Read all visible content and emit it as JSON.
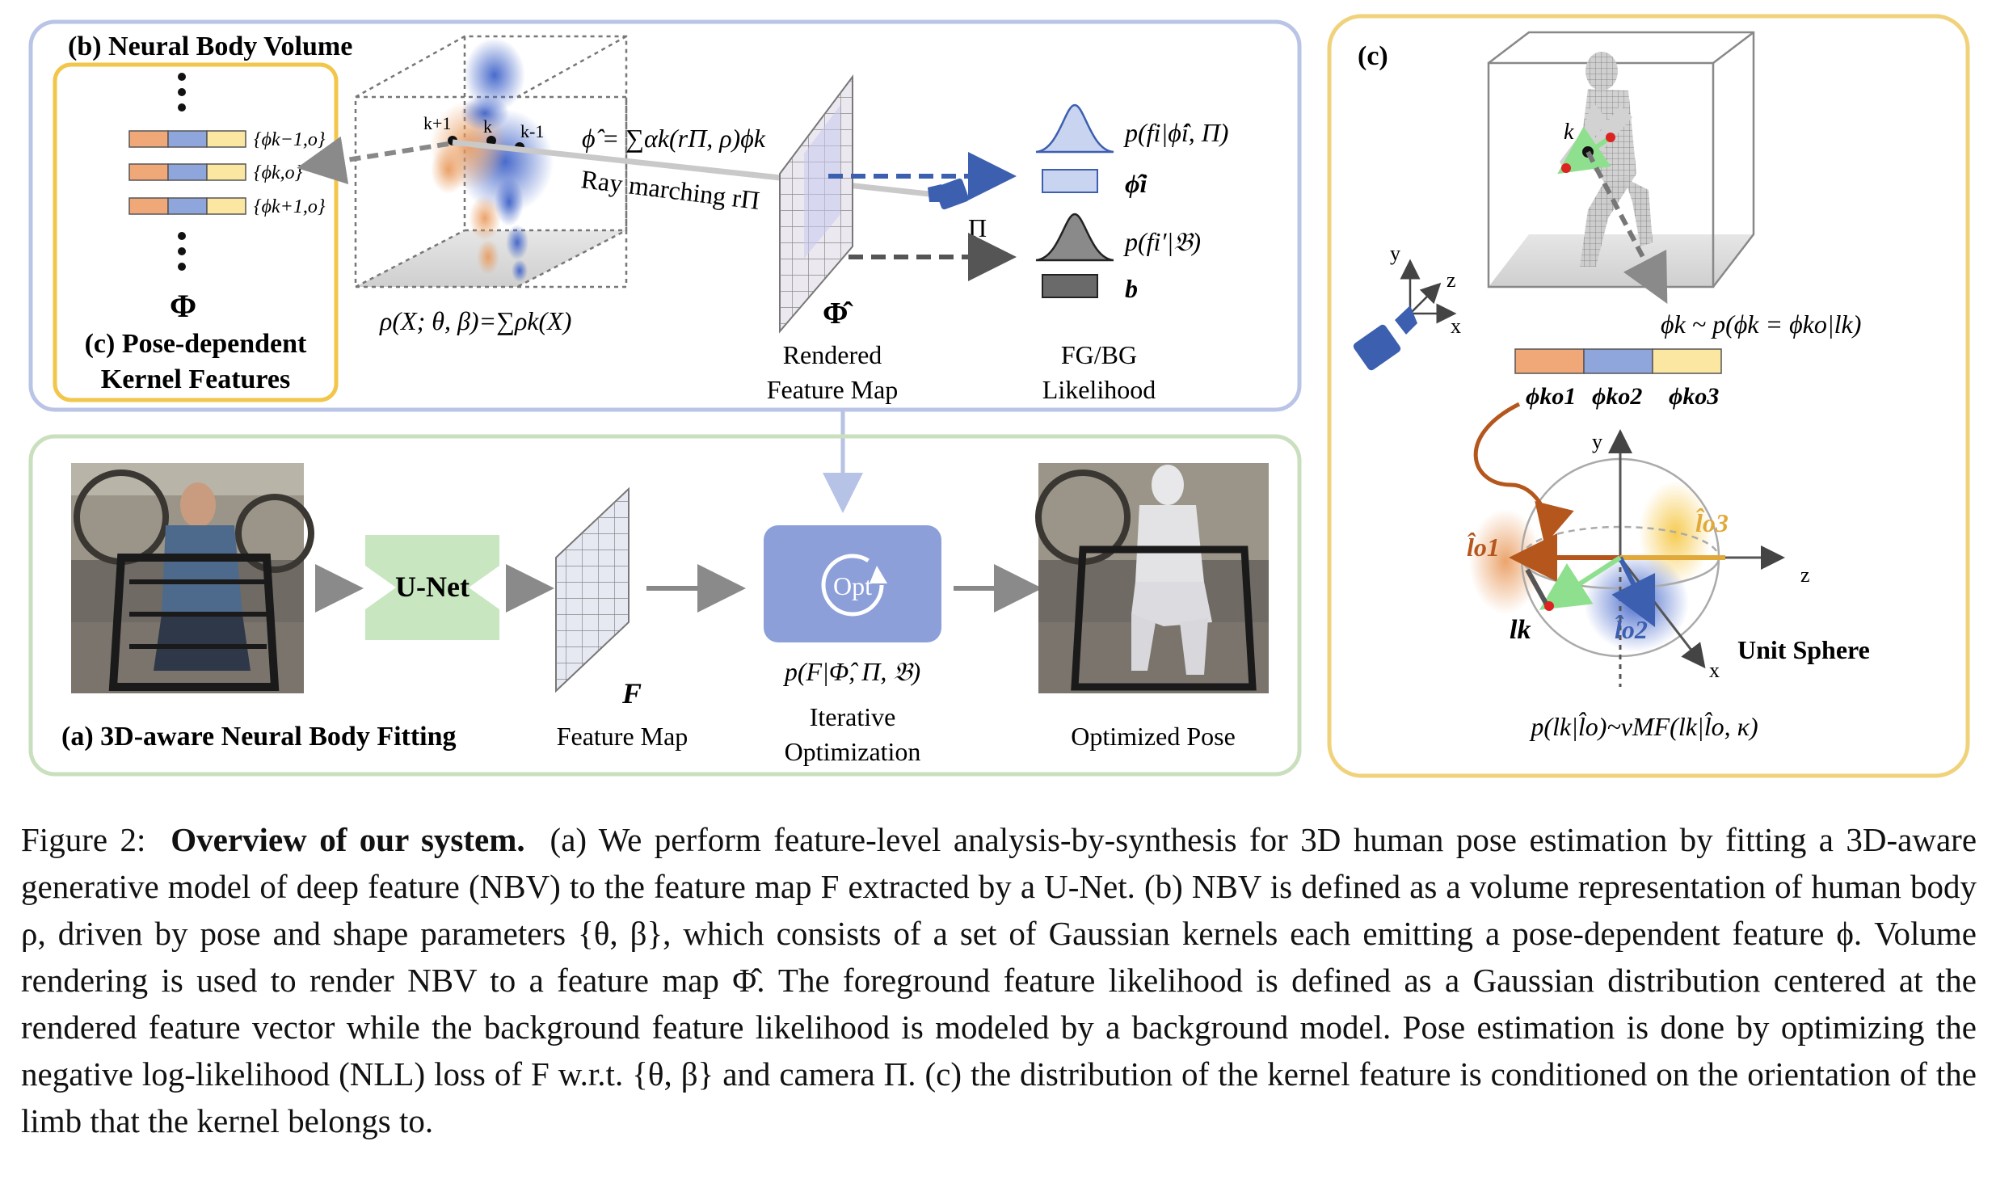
{
  "panel_b": {
    "title": "(b) Neural Body Volume",
    "features": [
      "{ϕk−1,o}",
      "{ϕk,o}",
      "{ϕk+1,o}"
    ],
    "phi_symbol": "Φ",
    "kernel_title_line1": "(c) Pose-dependent",
    "kernel_title_line2": "Kernel Features",
    "kernel_labels": [
      "k+1",
      "k",
      "k-1"
    ],
    "density_formula": "ρ(X; θ, β)=∑ρk(X)",
    "render_formula": "ϕ̂ = ∑αk(rΠ, ρ)ϕk",
    "ray_label": "Ray marching rΠ",
    "camera_symbol": "Π",
    "phi_hat_symbol": "Φ̂",
    "rendered_line1": "Rendered",
    "rendered_line2": "Feature Map",
    "fg_likelihood": "p(fi|ϕ̂i, Π)",
    "fg_vector": "ϕ̂i",
    "bg_likelihood": "p(fi′|𝔅)",
    "bg_vector": "b",
    "likelihood_line1": "FG/BG",
    "likelihood_line2": "Likelihood"
  },
  "panel_a": {
    "unet": "U-Net",
    "feature_symbol": "F",
    "feature_label": "Feature Map",
    "opt": "Opt",
    "opt_formula": "p(F|Φ̂, Π, 𝔅)",
    "opt_line1": "Iterative",
    "opt_line2": "Optimization",
    "pose_label": "Optimized Pose",
    "title": "(a) 3D-aware Neural Body Fitting"
  },
  "panel_c": {
    "label": "(c)",
    "k_label": "k",
    "axes": {
      "y": "y",
      "z": "z",
      "x": "x"
    },
    "phi_k_formula": "ϕk ~ p(ϕk = ϕko|lk)",
    "ko_labels": [
      "ϕko1",
      "ϕko2",
      "ϕko3"
    ],
    "sphere_axes": {
      "y": "y",
      "z": "z",
      "x": "x"
    },
    "o1": "l̂o1",
    "o2": "l̂o2",
    "o3": "l̂o3",
    "lk": "lk",
    "unit_sphere": "Unit Sphere",
    "vmf_formula": "p(lk|l̂o)~vMF(lk|l̂o, κ)"
  },
  "caption": {
    "prefix": "Figure 2:",
    "bold": "Overview of our system.",
    "text": "(a) We perform feature-level analysis-by-synthesis for 3D human pose estimation by fitting a 3D-aware generative model of deep feature (NBV) to the feature map F extracted by a U-Net. (b) NBV is defined as a volume representation of human body ρ, driven by pose and shape parameters {θ, β}, which consists of a set of Gaussian kernels each emitting a pose-dependent feature ϕ. Volume rendering is used to render NBV to a feature map Φ̂. The foreground feature likelihood is defined as a Gaussian distribution centered at the rendered feature vector while the background feature likelihood is modeled by a background model. Pose estimation is done by optimizing the negative log-likelihood (NLL) loss of F w.r.t. {θ, β} and camera Π. (c) the distribution of the kernel feature is conditioned on the orientation of the limb that the kernel belongs to."
  },
  "colors": {
    "panel_b_border": "#b9c4e6",
    "panel_a_border": "#c9dfbe",
    "panel_c_border": "#f0d27a",
    "kernel_border": "#f2c64a",
    "orange": "#f0a878",
    "blue": "#8fa6dc",
    "yellow": "#fbe7a2",
    "unet_green": "#c8e6bf",
    "opt_blue": "#8c9fd9",
    "dark_gray": "#6a6a6a",
    "arrow_blue": "#3d5fb0"
  }
}
